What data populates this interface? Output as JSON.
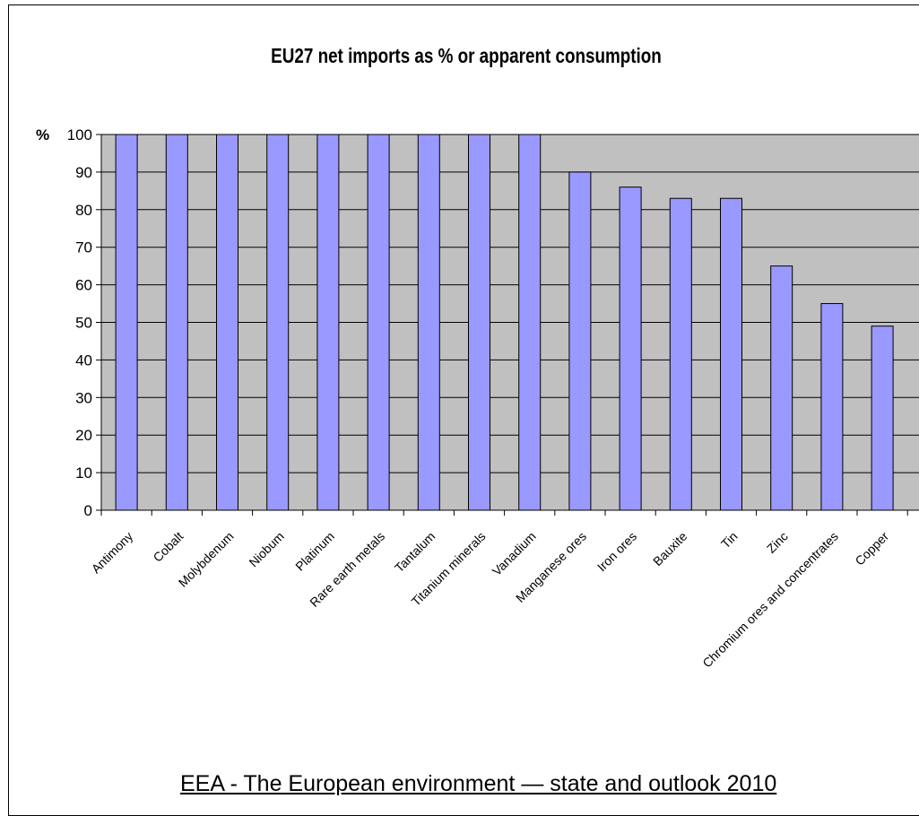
{
  "chart_data": {
    "type": "bar",
    "title": "EU27 net imports as % or apparent consumption",
    "ylabel": "%",
    "ylim": [
      0,
      100
    ],
    "yticks": [
      0,
      10,
      20,
      30,
      40,
      50,
      60,
      70,
      80,
      90,
      100
    ],
    "grid": true,
    "categories": [
      "Antimony",
      "Cobalt",
      "Molybdenum",
      "Niobum",
      "Platinum",
      "Rare earth metals",
      "Tantalum",
      "Titanium minerals",
      "Vanadium",
      "Manganese ores",
      "Iron ores",
      "Bauxite",
      "Tin",
      "Zinc",
      "Chromium ores and concentrates",
      "Copper"
    ],
    "values": [
      100,
      100,
      100,
      100,
      100,
      100,
      100,
      100,
      100,
      90,
      86,
      83,
      83,
      65,
      55,
      49
    ],
    "colors": {
      "bar": "#9999ff",
      "plot_bg": "#c0c0c0",
      "bar_outline": "#000000"
    }
  },
  "footer": {
    "text": "EEA - The European environment — state and outlook 2010"
  }
}
